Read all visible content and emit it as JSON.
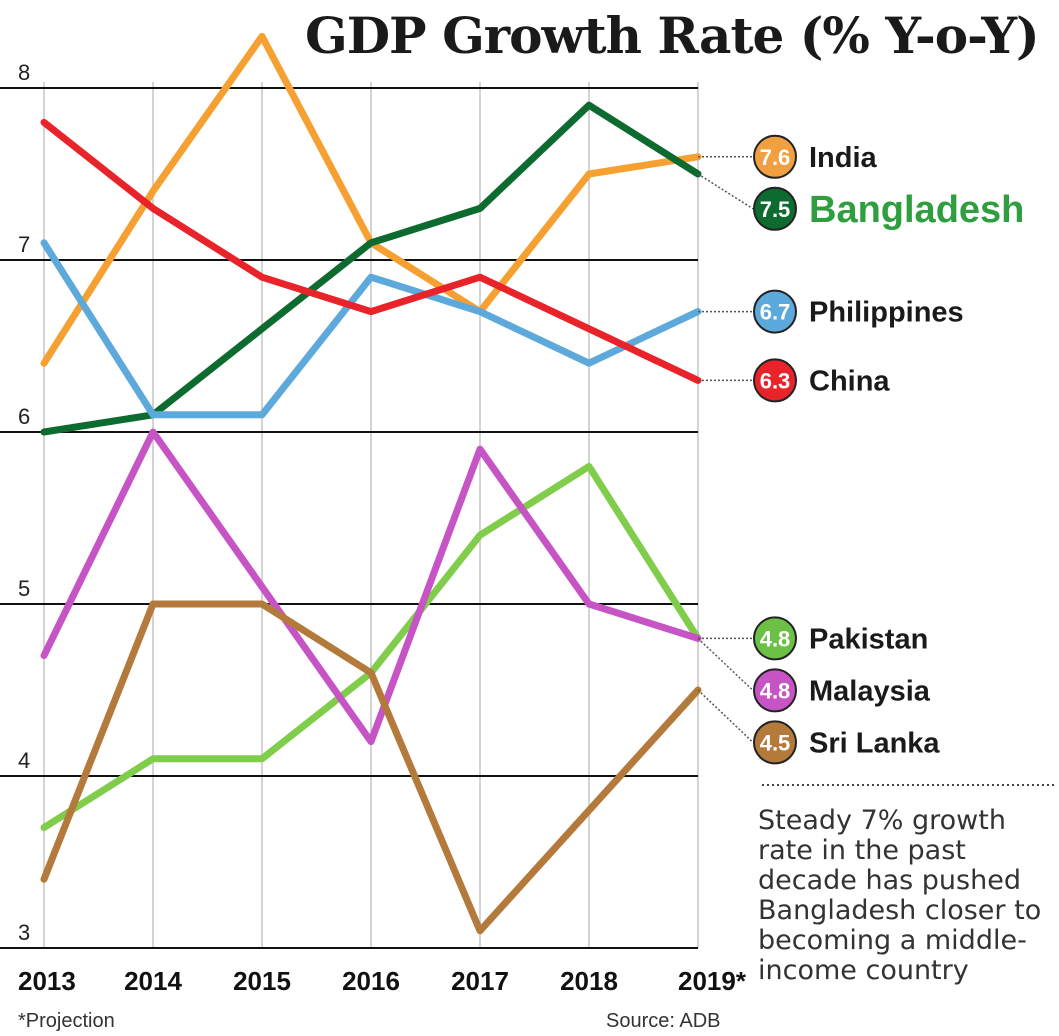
{
  "chart_data": {
    "type": "line",
    "title": "GDP Growth Rate (% Y-o-Y)",
    "xlabel": "",
    "ylabel": "",
    "categories": [
      "2013",
      "2014",
      "2015",
      "2016",
      "2017",
      "2018",
      "2019*"
    ],
    "ylim": [
      3,
      8
    ],
    "yticks": [
      "3",
      "4",
      "5",
      "6",
      "7",
      "8"
    ],
    "grid": "horizontal",
    "series": [
      {
        "name": "India",
        "values": [
          6.4,
          7.4,
          8.3,
          7.1,
          6.7,
          7.5,
          7.6
        ],
        "color": "#f5a030",
        "label": "7.6",
        "badge_color": "#f0a040",
        "name_color": "#1a1a1a"
      },
      {
        "name": "Bangladesh",
        "values": [
          6.0,
          6.1,
          6.6,
          7.1,
          7.3,
          7.9,
          7.5
        ],
        "color": "#0d6b2f",
        "label": "7.5",
        "badge_color": "#0d6b2f",
        "name_color": "#2e9e3e"
      },
      {
        "name": "Philippines",
        "values": [
          7.1,
          6.1,
          6.1,
          6.9,
          6.7,
          6.4,
          6.7
        ],
        "color": "#5ea9dc",
        "label": "6.7",
        "badge_color": "#5ea9dc",
        "name_color": "#1a1a1a"
      },
      {
        "name": "China",
        "values": [
          7.8,
          7.3,
          6.9,
          6.7,
          6.9,
          6.6,
          6.3
        ],
        "color": "#e8232a",
        "label": "6.3",
        "badge_color": "#e8232a",
        "name_color": "#1a1a1a"
      },
      {
        "name": "Pakistan",
        "values": [
          3.7,
          4.1,
          4.1,
          4.6,
          5.4,
          5.8,
          4.8
        ],
        "color": "#7fcd4a",
        "label": "4.8",
        "badge_color": "#6cc045",
        "name_color": "#1a1a1a"
      },
      {
        "name": "Malaysia",
        "values": [
          4.7,
          6.0,
          5.1,
          4.2,
          5.9,
          5.0,
          4.8
        ],
        "color": "#c754c4",
        "label": "4.8",
        "badge_color": "#c754c4",
        "name_color": "#1a1a1a"
      },
      {
        "name": "Sri Lanka",
        "values": [
          3.4,
          5.0,
          5.0,
          4.6,
          3.1,
          3.8,
          4.5
        ],
        "color": "#b47a3c",
        "label": "4.5",
        "badge_color": "#b47a3c",
        "name_color": "#1a1a1a"
      }
    ],
    "annotation": "Steady 7% growth rate in the past decade has pushed Bangladesh closer to becoming a middle-income country",
    "footnote": "*Projection",
    "source": "Source: ADB"
  }
}
